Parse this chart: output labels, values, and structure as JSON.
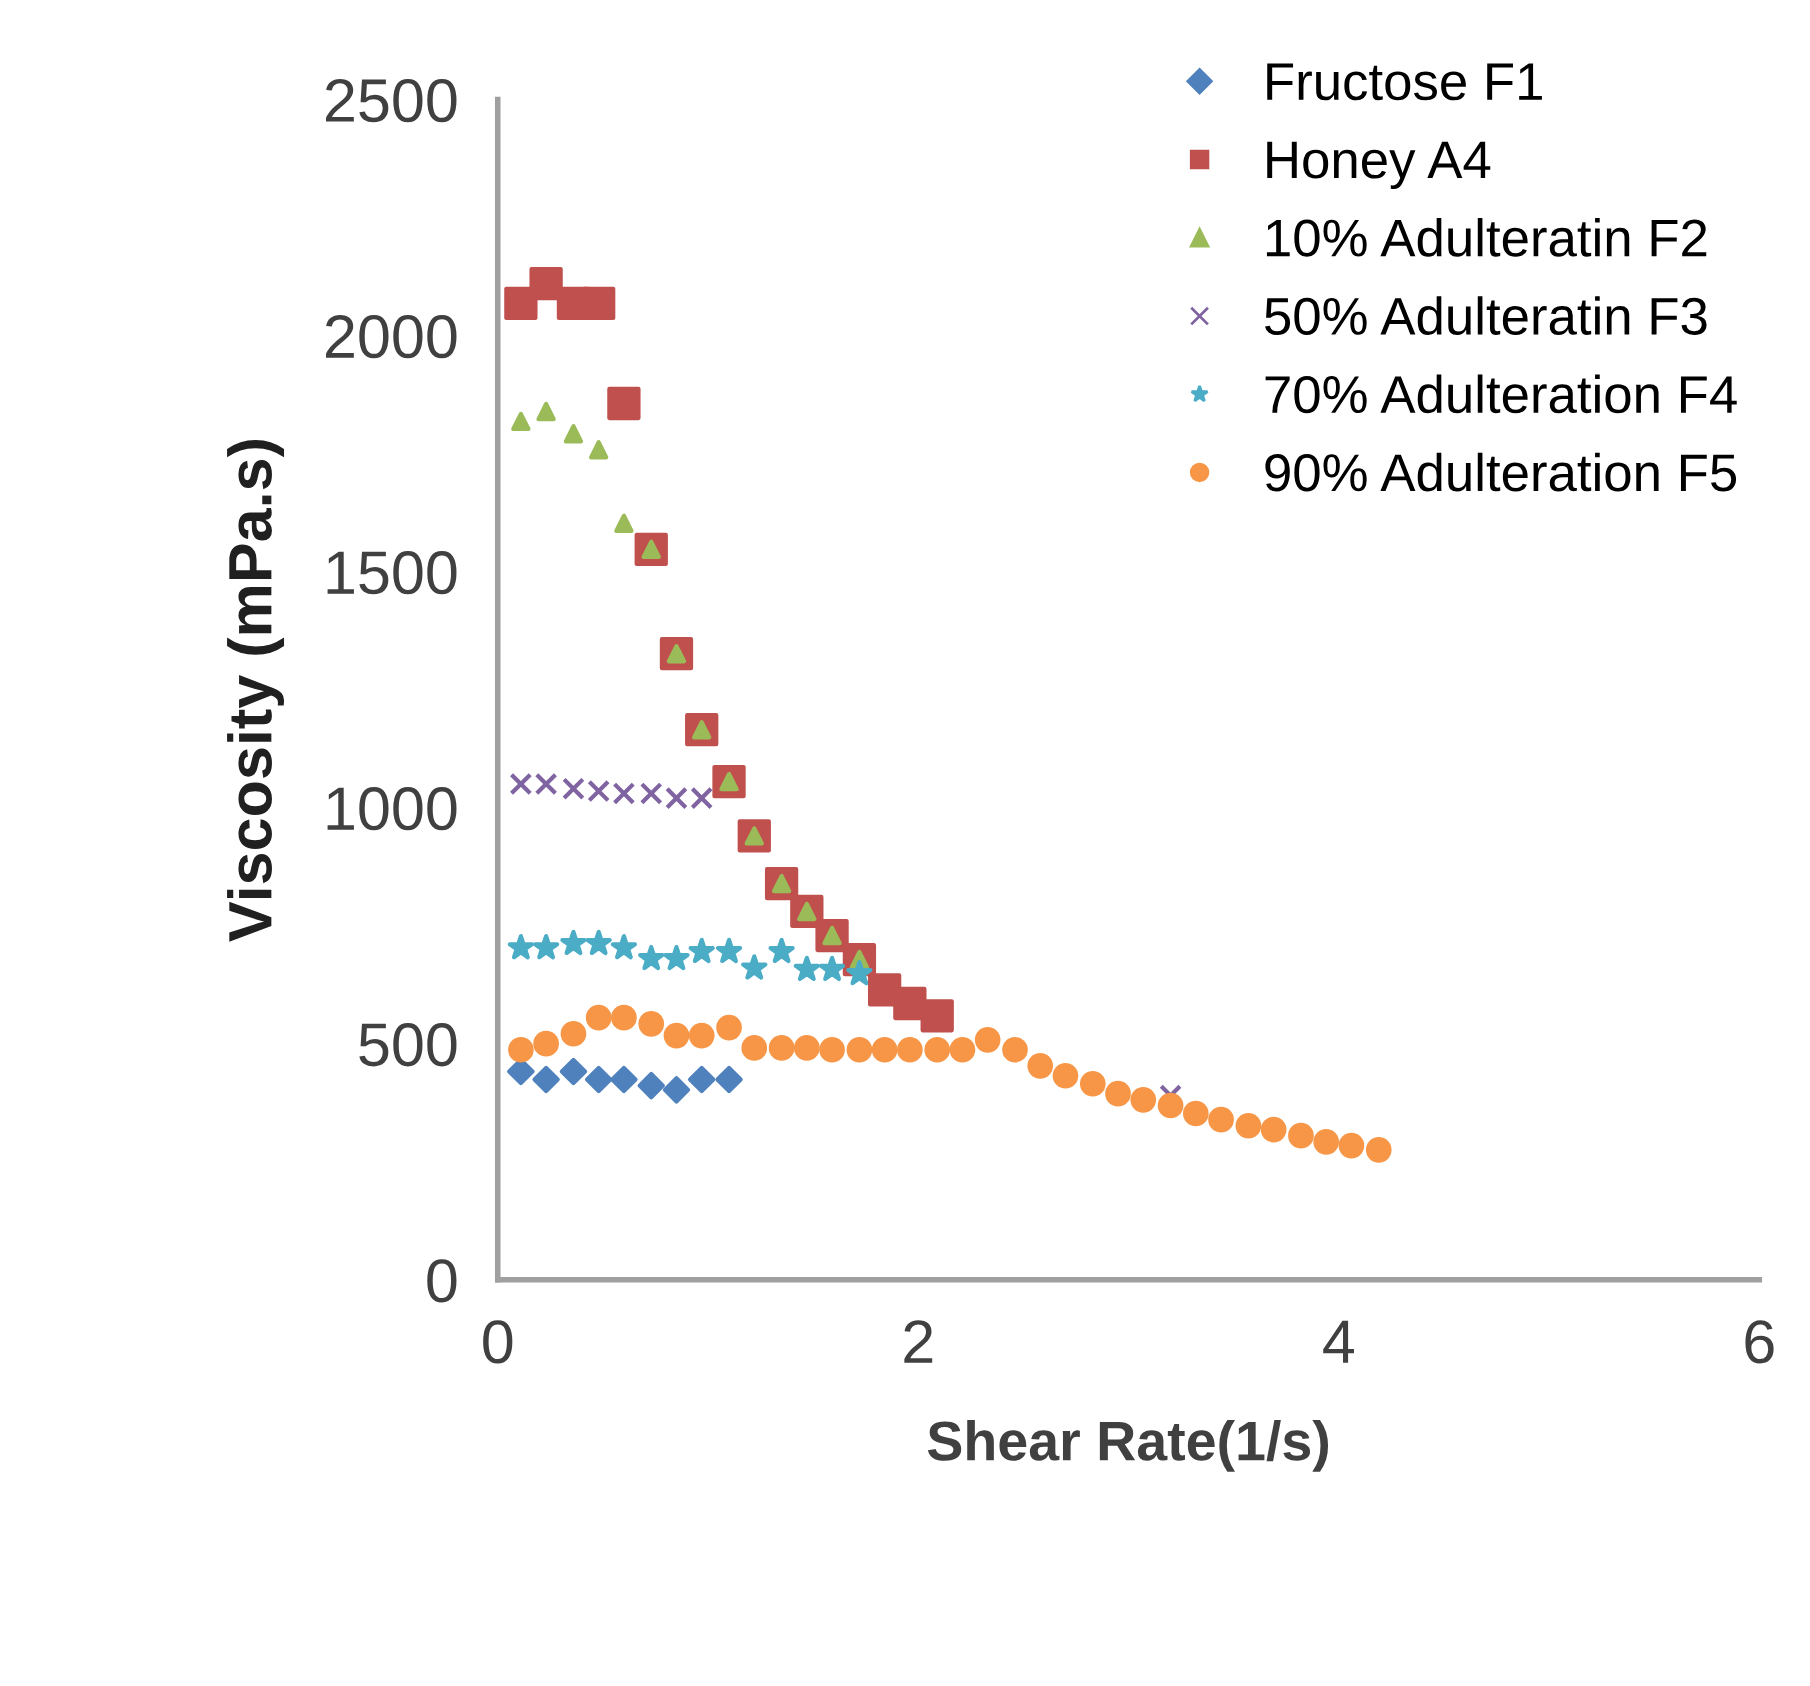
{
  "chart_data": {
    "type": "scatter",
    "xlabel": "Shear Rate(1/s)",
    "ylabel": "Viscosity (mPa.s)",
    "x": [
      0.11,
      0.23,
      0.36,
      0.48,
      0.6,
      0.73,
      0.85,
      0.97,
      1.1,
      1.22,
      1.35,
      1.47,
      1.59,
      1.72,
      1.84,
      1.96,
      2.09,
      2.21,
      2.33,
      2.46,
      2.58,
      2.7,
      2.83,
      2.95,
      3.07,
      3.2,
      3.32,
      3.44,
      3.57,
      3.69,
      3.82,
      3.94,
      4.06,
      4.19
    ],
    "series": [
      {
        "name": "Fructose F1",
        "color": "#4f81bd",
        "marker": "diamond",
        "values": [
          441,
          424,
          441,
          424,
          424,
          411,
          402,
          424,
          424,
          null,
          null,
          null,
          null,
          null,
          null,
          null,
          null,
          null,
          null,
          null,
          null,
          null,
          null,
          null,
          null,
          null,
          null,
          null,
          null,
          null,
          null,
          null,
          null,
          null
        ]
      },
      {
        "name": "Honey A4",
        "color": "#c0504d",
        "marker": "square",
        "values": [
          2068,
          2110,
          2068,
          2068,
          1856,
          1547,
          1326,
          1165,
          1055,
          940,
          839,
          780,
          729,
          678,
          614,
          585,
          559,
          null,
          null,
          null,
          null,
          null,
          null,
          null,
          null,
          null,
          null,
          null,
          null,
          null,
          null,
          null,
          null,
          null
        ]
      },
      {
        "name": "10% Adulteratin F2",
        "color": "#9bbb59",
        "marker": "triangle",
        "values": [
          1818,
          1839,
          1792,
          1758,
          1602,
          1547,
          1326,
          1165,
          1055,
          940,
          839,
          780,
          729,
          678,
          null,
          null,
          null,
          null,
          null,
          null,
          null,
          null,
          null,
          null,
          null,
          null,
          null,
          null,
          null,
          null,
          null,
          null,
          null,
          null
        ]
      },
      {
        "name": "50% Adulteratin F3",
        "color": "#8064a2",
        "marker": "cross",
        "values": [
          1050,
          1050,
          1040,
          1035,
          1030,
          1030,
          1020,
          1020,
          null,
          null,
          null,
          null,
          null,
          null,
          null,
          null,
          null,
          null,
          null,
          null,
          null,
          null,
          null,
          null,
          null,
          390,
          null,
          null,
          null,
          null,
          null,
          null,
          null,
          null
        ]
      },
      {
        "name": "70% Adulteration F4",
        "color": "#4bacc6",
        "marker": "star",
        "values": [
          703,
          703,
          712,
          712,
          703,
          680,
          680,
          695,
          695,
          660,
          695,
          657,
          657,
          648,
          null,
          null,
          null,
          null,
          null,
          null,
          null,
          null,
          null,
          null,
          null,
          null,
          null,
          null,
          null,
          null,
          null,
          null,
          null,
          null
        ]
      },
      {
        "name": "90% Adulteration F5",
        "color": "#f79646",
        "marker": "circle",
        "values": [
          487,
          500,
          521,
          555,
          555,
          542,
          517,
          517,
          534,
          491,
          491,
          491,
          487,
          487,
          487,
          487,
          487,
          487,
          508,
          487,
          453,
          432,
          415,
          394,
          381,
          369,
          352,
          339,
          326,
          318,
          305,
          292,
          284,
          275
        ]
      }
    ],
    "xlim": [
      0,
      6
    ],
    "xticks": [
      0,
      2,
      4,
      6
    ],
    "ylim": [
      0,
      2500
    ],
    "yticks": [
      0,
      500,
      1000,
      1500,
      2000,
      2500
    ],
    "grid": false,
    "legend": "top right"
  }
}
